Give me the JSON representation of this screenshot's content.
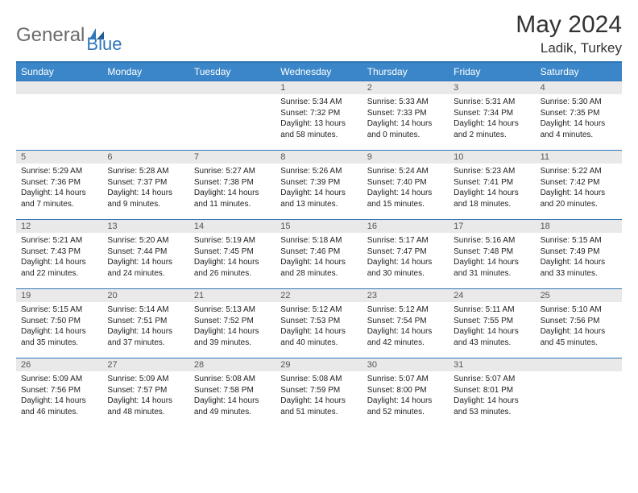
{
  "logo": {
    "part1": "General",
    "part2": "Blue"
  },
  "title": "May 2024",
  "location": "Ladik, Turkey",
  "colors": {
    "header_bg": "#3a86c8",
    "header_text": "#ffffff",
    "rule": "#2f76b8",
    "daynum_bg": "#e9e9e9",
    "text": "#222222",
    "logo_gray": "#6b6b6b",
    "logo_blue": "#2f76b8",
    "background": "#ffffff"
  },
  "dayNames": [
    "Sunday",
    "Monday",
    "Tuesday",
    "Wednesday",
    "Thursday",
    "Friday",
    "Saturday"
  ],
  "weeks": [
    [
      {
        "day": "",
        "sunrise": "",
        "sunset": "",
        "daylight": ""
      },
      {
        "day": "",
        "sunrise": "",
        "sunset": "",
        "daylight": ""
      },
      {
        "day": "",
        "sunrise": "",
        "sunset": "",
        "daylight": ""
      },
      {
        "day": "1",
        "sunrise": "Sunrise: 5:34 AM",
        "sunset": "Sunset: 7:32 PM",
        "daylight": "Daylight: 13 hours and 58 minutes."
      },
      {
        "day": "2",
        "sunrise": "Sunrise: 5:33 AM",
        "sunset": "Sunset: 7:33 PM",
        "daylight": "Daylight: 14 hours and 0 minutes."
      },
      {
        "day": "3",
        "sunrise": "Sunrise: 5:31 AM",
        "sunset": "Sunset: 7:34 PM",
        "daylight": "Daylight: 14 hours and 2 minutes."
      },
      {
        "day": "4",
        "sunrise": "Sunrise: 5:30 AM",
        "sunset": "Sunset: 7:35 PM",
        "daylight": "Daylight: 14 hours and 4 minutes."
      }
    ],
    [
      {
        "day": "5",
        "sunrise": "Sunrise: 5:29 AM",
        "sunset": "Sunset: 7:36 PM",
        "daylight": "Daylight: 14 hours and 7 minutes."
      },
      {
        "day": "6",
        "sunrise": "Sunrise: 5:28 AM",
        "sunset": "Sunset: 7:37 PM",
        "daylight": "Daylight: 14 hours and 9 minutes."
      },
      {
        "day": "7",
        "sunrise": "Sunrise: 5:27 AM",
        "sunset": "Sunset: 7:38 PM",
        "daylight": "Daylight: 14 hours and 11 minutes."
      },
      {
        "day": "8",
        "sunrise": "Sunrise: 5:26 AM",
        "sunset": "Sunset: 7:39 PM",
        "daylight": "Daylight: 14 hours and 13 minutes."
      },
      {
        "day": "9",
        "sunrise": "Sunrise: 5:24 AM",
        "sunset": "Sunset: 7:40 PM",
        "daylight": "Daylight: 14 hours and 15 minutes."
      },
      {
        "day": "10",
        "sunrise": "Sunrise: 5:23 AM",
        "sunset": "Sunset: 7:41 PM",
        "daylight": "Daylight: 14 hours and 18 minutes."
      },
      {
        "day": "11",
        "sunrise": "Sunrise: 5:22 AM",
        "sunset": "Sunset: 7:42 PM",
        "daylight": "Daylight: 14 hours and 20 minutes."
      }
    ],
    [
      {
        "day": "12",
        "sunrise": "Sunrise: 5:21 AM",
        "sunset": "Sunset: 7:43 PM",
        "daylight": "Daylight: 14 hours and 22 minutes."
      },
      {
        "day": "13",
        "sunrise": "Sunrise: 5:20 AM",
        "sunset": "Sunset: 7:44 PM",
        "daylight": "Daylight: 14 hours and 24 minutes."
      },
      {
        "day": "14",
        "sunrise": "Sunrise: 5:19 AM",
        "sunset": "Sunset: 7:45 PM",
        "daylight": "Daylight: 14 hours and 26 minutes."
      },
      {
        "day": "15",
        "sunrise": "Sunrise: 5:18 AM",
        "sunset": "Sunset: 7:46 PM",
        "daylight": "Daylight: 14 hours and 28 minutes."
      },
      {
        "day": "16",
        "sunrise": "Sunrise: 5:17 AM",
        "sunset": "Sunset: 7:47 PM",
        "daylight": "Daylight: 14 hours and 30 minutes."
      },
      {
        "day": "17",
        "sunrise": "Sunrise: 5:16 AM",
        "sunset": "Sunset: 7:48 PM",
        "daylight": "Daylight: 14 hours and 31 minutes."
      },
      {
        "day": "18",
        "sunrise": "Sunrise: 5:15 AM",
        "sunset": "Sunset: 7:49 PM",
        "daylight": "Daylight: 14 hours and 33 minutes."
      }
    ],
    [
      {
        "day": "19",
        "sunrise": "Sunrise: 5:15 AM",
        "sunset": "Sunset: 7:50 PM",
        "daylight": "Daylight: 14 hours and 35 minutes."
      },
      {
        "day": "20",
        "sunrise": "Sunrise: 5:14 AM",
        "sunset": "Sunset: 7:51 PM",
        "daylight": "Daylight: 14 hours and 37 minutes."
      },
      {
        "day": "21",
        "sunrise": "Sunrise: 5:13 AM",
        "sunset": "Sunset: 7:52 PM",
        "daylight": "Daylight: 14 hours and 39 minutes."
      },
      {
        "day": "22",
        "sunrise": "Sunrise: 5:12 AM",
        "sunset": "Sunset: 7:53 PM",
        "daylight": "Daylight: 14 hours and 40 minutes."
      },
      {
        "day": "23",
        "sunrise": "Sunrise: 5:12 AM",
        "sunset": "Sunset: 7:54 PM",
        "daylight": "Daylight: 14 hours and 42 minutes."
      },
      {
        "day": "24",
        "sunrise": "Sunrise: 5:11 AM",
        "sunset": "Sunset: 7:55 PM",
        "daylight": "Daylight: 14 hours and 43 minutes."
      },
      {
        "day": "25",
        "sunrise": "Sunrise: 5:10 AM",
        "sunset": "Sunset: 7:56 PM",
        "daylight": "Daylight: 14 hours and 45 minutes."
      }
    ],
    [
      {
        "day": "26",
        "sunrise": "Sunrise: 5:09 AM",
        "sunset": "Sunset: 7:56 PM",
        "daylight": "Daylight: 14 hours and 46 minutes."
      },
      {
        "day": "27",
        "sunrise": "Sunrise: 5:09 AM",
        "sunset": "Sunset: 7:57 PM",
        "daylight": "Daylight: 14 hours and 48 minutes."
      },
      {
        "day": "28",
        "sunrise": "Sunrise: 5:08 AM",
        "sunset": "Sunset: 7:58 PM",
        "daylight": "Daylight: 14 hours and 49 minutes."
      },
      {
        "day": "29",
        "sunrise": "Sunrise: 5:08 AM",
        "sunset": "Sunset: 7:59 PM",
        "daylight": "Daylight: 14 hours and 51 minutes."
      },
      {
        "day": "30",
        "sunrise": "Sunrise: 5:07 AM",
        "sunset": "Sunset: 8:00 PM",
        "daylight": "Daylight: 14 hours and 52 minutes."
      },
      {
        "day": "31",
        "sunrise": "Sunrise: 5:07 AM",
        "sunset": "Sunset: 8:01 PM",
        "daylight": "Daylight: 14 hours and 53 minutes."
      },
      {
        "day": "",
        "sunrise": "",
        "sunset": "",
        "daylight": ""
      }
    ]
  ]
}
